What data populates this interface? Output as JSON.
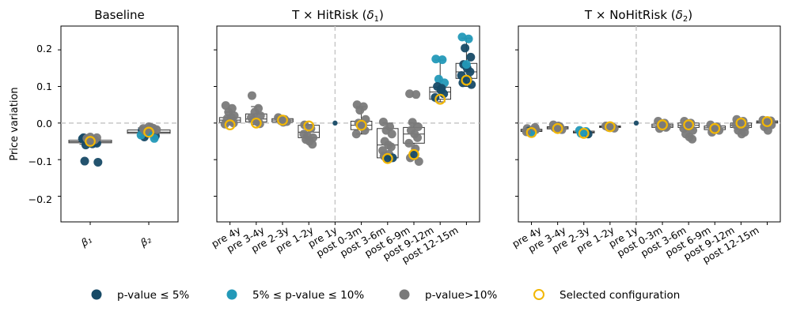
{
  "colors": {
    "sig5": "#174a66",
    "sig10": "#2399b8",
    "ns": "#7a7a7a",
    "selected": "#f2b705",
    "grid": "#c8c8c8"
  },
  "chart_data": [
    {
      "type": "strip-box",
      "title": "Baseline",
      "ylabel": "Price variation",
      "ylim": [
        -0.27,
        0.265
      ],
      "yticks": [
        "−0.2",
        "−0.1",
        "0.0",
        "0.1",
        "0.2"
      ],
      "ytick_values": [
        -0.2,
        -0.1,
        0.0,
        0.1,
        0.2
      ],
      "reference_line": 0.0,
      "categories": [
        "β₁",
        "β₂"
      ],
      "boxes": [
        {
          "q1": -0.054,
          "median": -0.051,
          "q3": -0.047,
          "wlo": -0.058,
          "whi": -0.044
        },
        {
          "q1": -0.028,
          "median": -0.025,
          "q3": -0.019,
          "wlo": -0.036,
          "whi": -0.013
        }
      ],
      "points": [
        [
          {
            "v": -0.04,
            "s": "sig5"
          },
          {
            "v": -0.045,
            "s": "sig5"
          },
          {
            "v": -0.05,
            "s": "sig5"
          },
          {
            "v": -0.055,
            "s": "sig5"
          },
          {
            "v": -0.06,
            "s": "sig5"
          },
          {
            "v": -0.048,
            "s": "sig5"
          },
          {
            "v": -0.052,
            "s": "sig5"
          },
          {
            "v": -0.043,
            "s": "sig5"
          },
          {
            "v": -0.057,
            "s": "sig5"
          },
          {
            "v": -0.104,
            "s": "sig5"
          },
          {
            "v": -0.107,
            "s": "sig5"
          },
          {
            "v": -0.038,
            "s": "ns"
          },
          {
            "v": -0.042,
            "s": "ns"
          },
          {
            "v": -0.046,
            "s": "ns"
          },
          {
            "v": -0.05,
            "s": "ns"
          },
          {
            "v": -0.04,
            "s": "ns"
          }
        ],
        [
          {
            "v": -0.02,
            "s": "sig5"
          },
          {
            "v": -0.025,
            "s": "sig5"
          },
          {
            "v": -0.03,
            "s": "sig5"
          },
          {
            "v": -0.035,
            "s": "sig5"
          },
          {
            "v": -0.038,
            "s": "sig5"
          },
          {
            "v": -0.028,
            "s": "sig10"
          },
          {
            "v": -0.042,
            "s": "sig10"
          },
          {
            "v": -0.033,
            "s": "sig10"
          },
          {
            "v": -0.012,
            "s": "ns"
          },
          {
            "v": -0.015,
            "s": "ns"
          },
          {
            "v": -0.018,
            "s": "ns"
          },
          {
            "v": -0.01,
            "s": "ns"
          },
          {
            "v": -0.022,
            "s": "ns"
          },
          {
            "v": -0.014,
            "s": "ns"
          }
        ]
      ],
      "selected": [
        -0.05,
        -0.025
      ]
    },
    {
      "type": "strip-box",
      "title_pre": "T × HitRisk (",
      "title_sym": "δ",
      "title_sub": "1",
      "title_post": ")",
      "ylim": [
        -0.27,
        0.265
      ],
      "reference_line": 0.0,
      "divider_after": 4,
      "categories": [
        "pre 4y",
        "pre 3-4y",
        "pre 2-3y",
        "pre 1-2y",
        "pre 1y",
        "post 0-3m",
        "post 3-6m",
        "post 6-9m",
        "post 9-12m",
        "post 12-15m"
      ],
      "boxes": [
        {
          "q1": 0.002,
          "median": 0.008,
          "q3": 0.015,
          "wlo": -0.005,
          "whi": 0.03
        },
        {
          "q1": 0.003,
          "median": 0.011,
          "q3": 0.025,
          "wlo": -0.004,
          "whi": 0.045
        },
        {
          "q1": 0.003,
          "median": 0.008,
          "q3": 0.012,
          "wlo": 0.0,
          "whi": 0.016
        },
        {
          "q1": -0.04,
          "median": -0.025,
          "q3": -0.006,
          "wlo": -0.048,
          "whi": -0.004
        },
        null,
        {
          "q1": -0.018,
          "median": -0.006,
          "q3": 0.005,
          "wlo": -0.03,
          "whi": 0.045
        },
        {
          "q1": -0.095,
          "median": -0.06,
          "q3": -0.015,
          "wlo": -0.098,
          "whi": 0.0
        },
        {
          "q1": -0.055,
          "median": -0.03,
          "q3": -0.012,
          "wlo": -0.1,
          "whi": 0.0
        },
        {
          "q1": 0.065,
          "median": 0.085,
          "q3": 0.098,
          "wlo": 0.058,
          "whi": 0.172
        },
        {
          "q1": 0.122,
          "median": 0.14,
          "q3": 0.163,
          "wlo": 0.1,
          "whi": 0.232
        }
      ],
      "points": [
        [
          {
            "v": 0.048,
            "s": "ns"
          },
          {
            "v": 0.04,
            "s": "ns"
          },
          {
            "v": 0.03,
            "s": "ns"
          },
          {
            "v": 0.02,
            "s": "ns"
          },
          {
            "v": 0.012,
            "s": "ns"
          },
          {
            "v": 0.005,
            "s": "ns"
          },
          {
            "v": 0.0,
            "s": "ns"
          },
          {
            "v": -0.003,
            "s": "ns"
          },
          {
            "v": 0.015,
            "s": "ns"
          }
        ],
        [
          {
            "v": 0.075,
            "s": "ns"
          },
          {
            "v": 0.04,
            "s": "ns"
          },
          {
            "v": 0.03,
            "s": "ns"
          },
          {
            "v": 0.02,
            "s": "ns"
          },
          {
            "v": 0.01,
            "s": "ns"
          },
          {
            "v": 0.004,
            "s": "ns"
          },
          {
            "v": -0.002,
            "s": "ns"
          },
          {
            "v": 0.015,
            "s": "ns"
          }
        ],
        [
          {
            "v": 0.015,
            "s": "ns"
          },
          {
            "v": 0.01,
            "s": "ns"
          },
          {
            "v": 0.006,
            "s": "ns"
          },
          {
            "v": 0.004,
            "s": "ns"
          },
          {
            "v": 0.012,
            "s": "ns"
          },
          {
            "v": 0.002,
            "s": "ns"
          }
        ],
        [
          {
            "v": -0.005,
            "s": "ns"
          },
          {
            "v": -0.015,
            "s": "ns"
          },
          {
            "v": -0.035,
            "s": "ns"
          },
          {
            "v": -0.04,
            "s": "ns"
          },
          {
            "v": -0.045,
            "s": "ns"
          },
          {
            "v": -0.05,
            "s": "ns"
          },
          {
            "v": -0.058,
            "s": "ns"
          },
          {
            "v": -0.03,
            "s": "ns"
          }
        ],
        [
          {
            "v": 0.0,
            "s": "sig5"
          }
        ],
        [
          {
            "v": 0.05,
            "s": "ns"
          },
          {
            "v": 0.045,
            "s": "ns"
          },
          {
            "v": 0.035,
            "s": "ns"
          },
          {
            "v": 0.01,
            "s": "ns"
          },
          {
            "v": 0.0,
            "s": "ns"
          },
          {
            "v": -0.01,
            "s": "ns"
          },
          {
            "v": -0.02,
            "s": "ns"
          },
          {
            "v": -0.03,
            "s": "ns"
          },
          {
            "v": -0.005,
            "s": "ns"
          }
        ],
        [
          {
            "v": 0.003,
            "s": "ns"
          },
          {
            "v": -0.01,
            "s": "ns"
          },
          {
            "v": -0.02,
            "s": "ns"
          },
          {
            "v": -0.03,
            "s": "ns"
          },
          {
            "v": -0.05,
            "s": "ns"
          },
          {
            "v": -0.06,
            "s": "ns"
          },
          {
            "v": -0.065,
            "s": "ns"
          },
          {
            "v": -0.075,
            "s": "ns"
          },
          {
            "v": -0.085,
            "s": "ns"
          },
          {
            "v": -0.09,
            "s": "ns"
          },
          {
            "v": -0.095,
            "s": "sig5"
          },
          {
            "v": -0.098,
            "s": "sig5"
          }
        ],
        [
          {
            "v": 0.08,
            "s": "ns"
          },
          {
            "v": 0.078,
            "s": "ns"
          },
          {
            "v": 0.002,
            "s": "ns"
          },
          {
            "v": -0.01,
            "s": "ns"
          },
          {
            "v": -0.02,
            "s": "ns"
          },
          {
            "v": -0.03,
            "s": "ns"
          },
          {
            "v": -0.04,
            "s": "ns"
          },
          {
            "v": -0.055,
            "s": "ns"
          },
          {
            "v": -0.07,
            "s": "ns"
          },
          {
            "v": -0.095,
            "s": "ns"
          },
          {
            "v": -0.105,
            "s": "ns"
          },
          {
            "v": -0.085,
            "s": "sig5"
          }
        ],
        [
          {
            "v": 0.175,
            "s": "sig10"
          },
          {
            "v": 0.173,
            "s": "sig10"
          },
          {
            "v": 0.12,
            "s": "sig10"
          },
          {
            "v": 0.11,
            "s": "sig10"
          },
          {
            "v": 0.1,
            "s": "sig5"
          },
          {
            "v": 0.09,
            "s": "sig5"
          },
          {
            "v": 0.08,
            "s": "sig5"
          },
          {
            "v": 0.07,
            "s": "sig5"
          },
          {
            "v": 0.095,
            "s": "sig5"
          }
        ],
        [
          {
            "v": 0.235,
            "s": "sig10"
          },
          {
            "v": 0.23,
            "s": "sig10"
          },
          {
            "v": 0.205,
            "s": "sig5"
          },
          {
            "v": 0.18,
            "s": "sig5"
          },
          {
            "v": 0.16,
            "s": "sig5"
          },
          {
            "v": 0.15,
            "s": "sig5"
          },
          {
            "v": 0.14,
            "s": "sig5"
          },
          {
            "v": 0.13,
            "s": "sig5"
          },
          {
            "v": 0.12,
            "s": "sig5"
          },
          {
            "v": 0.11,
            "s": "sig5"
          },
          {
            "v": 0.105,
            "s": "sig5"
          },
          {
            "v": 0.16,
            "s": "sig10"
          }
        ]
      ],
      "selected": [
        -0.005,
        0.0,
        0.008,
        -0.008,
        null,
        -0.006,
        -0.097,
        -0.086,
        0.065,
        0.117
      ]
    },
    {
      "type": "strip-box",
      "title_pre": "T × NoHitRisk (",
      "title_sym": "δ",
      "title_sub": "2",
      "title_post": ")",
      "ylim": [
        -0.27,
        0.265
      ],
      "reference_line": 0.0,
      "divider_after": 4,
      "categories": [
        "pre 4y",
        "pre 3-4y",
        "pre 2-3y",
        "pre 1-2y",
        "pre 1y",
        "post 0-3m",
        "post 3-6m",
        "post 6-9m",
        "post 9-12m",
        "post 12-15m"
      ],
      "boxes": [
        {
          "q1": -0.023,
          "median": -0.02,
          "q3": -0.017,
          "wlo": -0.026,
          "whi": -0.014
        },
        {
          "q1": -0.016,
          "median": -0.013,
          "q3": -0.01,
          "wlo": -0.019,
          "whi": -0.006
        },
        {
          "q1": -0.027,
          "median": -0.025,
          "q3": -0.022,
          "wlo": -0.03,
          "whi": -0.019
        },
        {
          "q1": -0.012,
          "median": -0.01,
          "q3": -0.008,
          "wlo": -0.014,
          "whi": -0.006
        },
        null,
        {
          "q1": -0.012,
          "median": -0.008,
          "q3": -0.003,
          "wlo": -0.016,
          "whi": 0.004
        },
        {
          "q1": -0.012,
          "median": -0.006,
          "q3": 0.0,
          "wlo": -0.018,
          "whi": 0.006
        },
        {
          "q1": -0.018,
          "median": -0.013,
          "q3": -0.008,
          "wlo": -0.023,
          "whi": -0.004
        },
        {
          "q1": -0.012,
          "median": -0.006,
          "q3": 0.0,
          "wlo": -0.018,
          "whi": 0.008
        },
        {
          "q1": 0.0,
          "median": 0.003,
          "q3": 0.006,
          "wlo": -0.003,
          "whi": 0.009
        }
      ],
      "points": [
        [
          {
            "v": -0.015,
            "s": "ns"
          },
          {
            "v": -0.02,
            "s": "ns"
          },
          {
            "v": -0.025,
            "s": "ns"
          },
          {
            "v": -0.018,
            "s": "ns"
          },
          {
            "v": -0.022,
            "s": "sig5"
          },
          {
            "v": -0.028,
            "s": "sig10"
          },
          {
            "v": -0.012,
            "s": "ns"
          },
          {
            "v": -0.024,
            "s": "ns"
          }
        ],
        [
          {
            "v": -0.005,
            "s": "ns"
          },
          {
            "v": -0.01,
            "s": "ns"
          },
          {
            "v": -0.015,
            "s": "ns"
          },
          {
            "v": -0.018,
            "s": "ns"
          },
          {
            "v": -0.013,
            "s": "ns"
          },
          {
            "v": -0.008,
            "s": "ns"
          }
        ],
        [
          {
            "v": -0.02,
            "s": "sig10"
          },
          {
            "v": -0.023,
            "s": "sig10"
          },
          {
            "v": -0.026,
            "s": "sig5"
          },
          {
            "v": -0.03,
            "s": "sig5"
          },
          {
            "v": -0.028,
            "s": "sig10"
          },
          {
            "v": -0.024,
            "s": "sig10"
          }
        ],
        [
          {
            "v": -0.008,
            "s": "ns"
          },
          {
            "v": -0.01,
            "s": "ns"
          },
          {
            "v": -0.012,
            "s": "ns"
          },
          {
            "v": -0.014,
            "s": "ns"
          },
          {
            "v": -0.009,
            "s": "ns"
          }
        ],
        [
          {
            "v": 0.0,
            "s": "sig5"
          }
        ],
        [
          {
            "v": 0.005,
            "s": "ns"
          },
          {
            "v": 0.0,
            "s": "ns"
          },
          {
            "v": -0.005,
            "s": "ns"
          },
          {
            "v": -0.01,
            "s": "ns"
          },
          {
            "v": -0.015,
            "s": "ns"
          },
          {
            "v": -0.003,
            "s": "ns"
          },
          {
            "v": -0.012,
            "s": "ns"
          }
        ],
        [
          {
            "v": 0.005,
            "s": "ns"
          },
          {
            "v": 0.0,
            "s": "ns"
          },
          {
            "v": -0.01,
            "s": "ns"
          },
          {
            "v": -0.02,
            "s": "ns"
          },
          {
            "v": -0.03,
            "s": "ns"
          },
          {
            "v": -0.038,
            "s": "ns"
          },
          {
            "v": -0.044,
            "s": "ns"
          },
          {
            "v": -0.015,
            "s": "ns"
          }
        ],
        [
          {
            "v": -0.005,
            "s": "ns"
          },
          {
            "v": -0.01,
            "s": "ns"
          },
          {
            "v": -0.015,
            "s": "ns"
          },
          {
            "v": -0.02,
            "s": "ns"
          },
          {
            "v": -0.025,
            "s": "ns"
          },
          {
            "v": -0.012,
            "s": "ns"
          }
        ],
        [
          {
            "v": 0.01,
            "s": "ns"
          },
          {
            "v": 0.005,
            "s": "ns"
          },
          {
            "v": 0.0,
            "s": "ns"
          },
          {
            "v": -0.01,
            "s": "ns"
          },
          {
            "v": -0.02,
            "s": "ns"
          },
          {
            "v": -0.03,
            "s": "ns"
          },
          {
            "v": -0.025,
            "s": "ns"
          },
          {
            "v": -0.005,
            "s": "ns"
          }
        ],
        [
          {
            "v": 0.008,
            "s": "ns"
          },
          {
            "v": 0.004,
            "s": "ns"
          },
          {
            "v": 0.0,
            "s": "ns"
          },
          {
            "v": -0.005,
            "s": "ns"
          },
          {
            "v": -0.01,
            "s": "ns"
          },
          {
            "v": -0.02,
            "s": "ns"
          },
          {
            "v": 0.006,
            "s": "ns"
          }
        ]
      ],
      "selected": [
        -0.026,
        -0.015,
        -0.028,
        -0.01,
        null,
        -0.005,
        -0.005,
        -0.015,
        0.0,
        0.004
      ]
    }
  ],
  "legend": {
    "items": [
      {
        "label": "p-value ≤ 5%",
        "key": "sig5"
      },
      {
        "label": "5% ≤ p-value ≤ 10%",
        "key": "sig10"
      },
      {
        "label": "p-value>10%",
        "key": "ns"
      },
      {
        "label": "Selected configuration",
        "key": "selected"
      }
    ]
  }
}
